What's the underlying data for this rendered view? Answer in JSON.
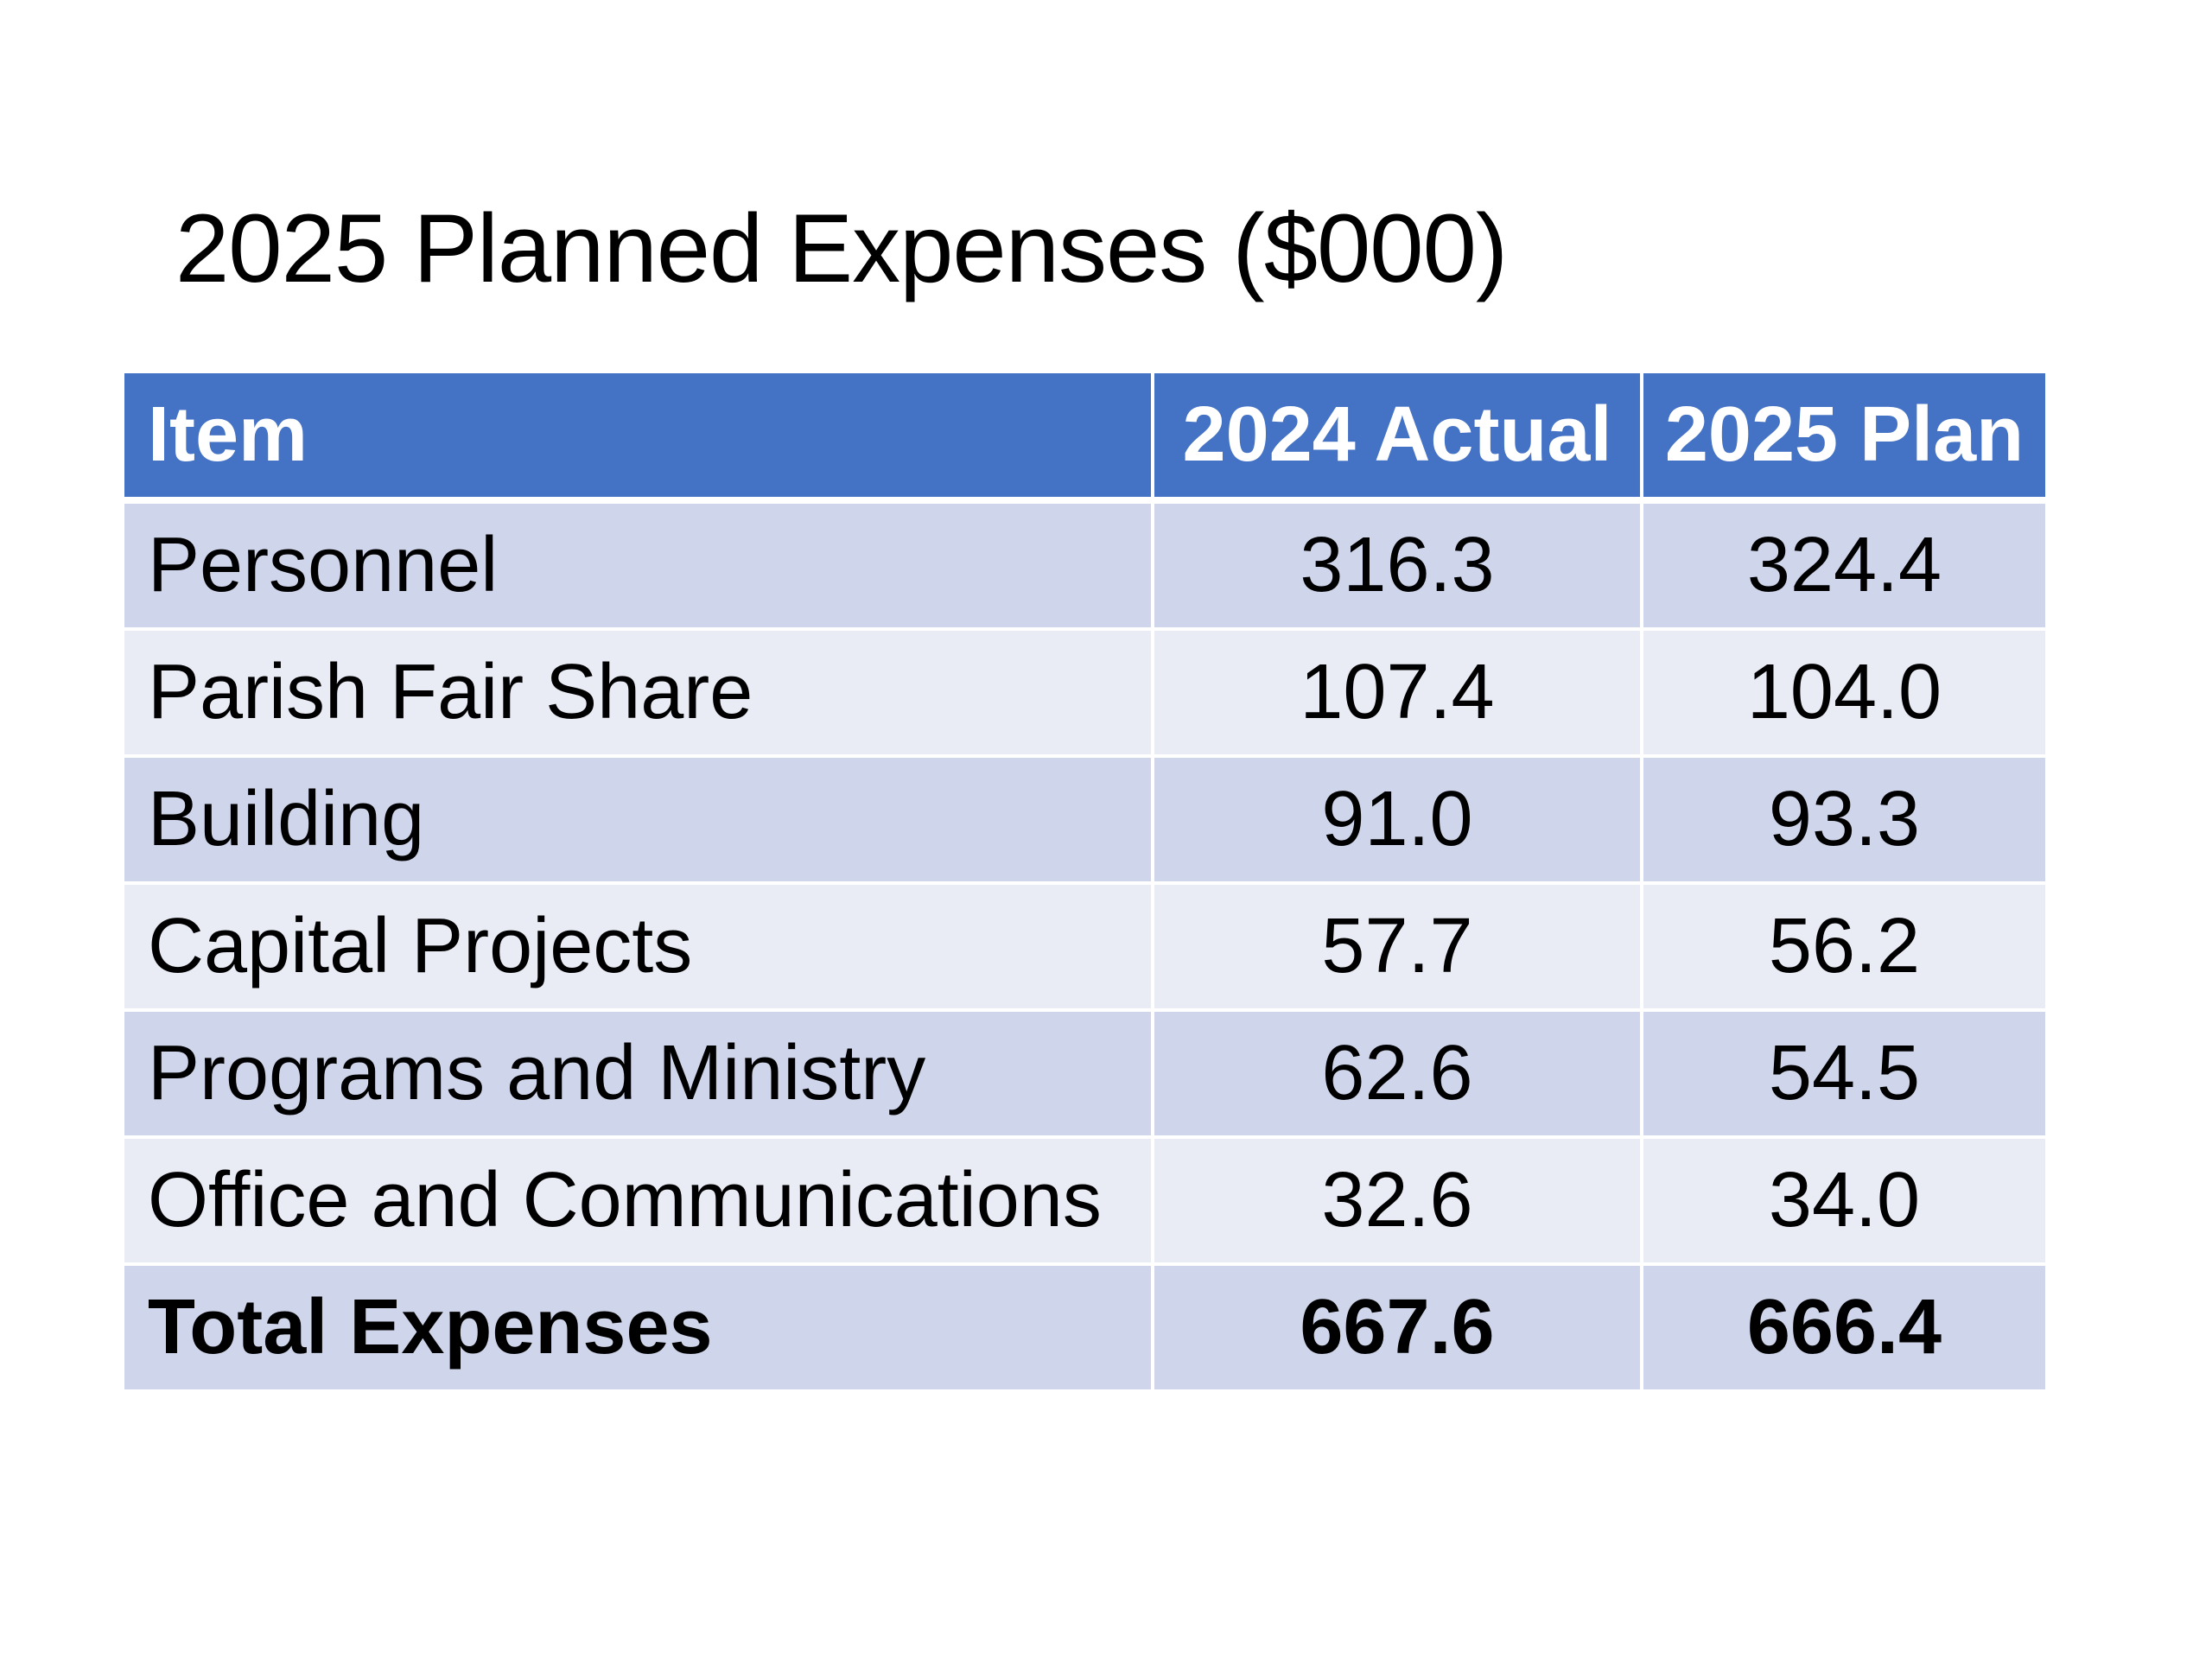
{
  "slide": {
    "title": "2025 Planned Expenses ($000)"
  },
  "table": {
    "headers": [
      "Item",
      "2024 Actual",
      "2025 Plan"
    ],
    "rows": [
      {
        "item": "Personnel",
        "actual_2024": "316.3",
        "plan_2025": "324.4"
      },
      {
        "item": "Parish Fair Share",
        "actual_2024": "107.4",
        "plan_2025": "104.0"
      },
      {
        "item": "Building",
        "actual_2024": "91.0",
        "plan_2025": "93.3"
      },
      {
        "item": "Capital Projects",
        "actual_2024": "57.7",
        "plan_2025": "56.2"
      },
      {
        "item": "Programs and Ministry",
        "actual_2024": "62.6",
        "plan_2025": "54.5"
      },
      {
        "item": "Office and Communications",
        "actual_2024": "32.6",
        "plan_2025": "34.0"
      }
    ],
    "total": {
      "item": "Total Expenses",
      "actual_2024": "667.6",
      "plan_2025": "666.4"
    }
  },
  "colors": {
    "header_fill": "#4472c4",
    "row_band_dark": "#cfd5ea",
    "row_band_light": "#e9ebf5"
  }
}
